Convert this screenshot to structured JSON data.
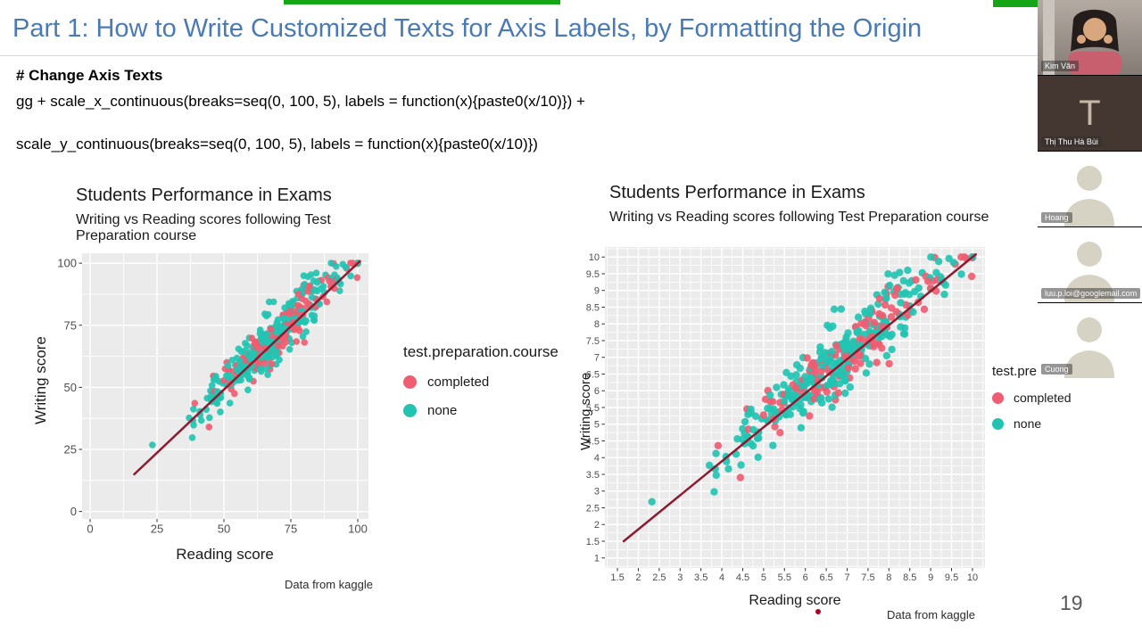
{
  "slide": {
    "title": "Part 1: How to Write Customized Texts for Axis Labels, by Formatting the Origin",
    "code_heading": "# Change Axis Texts",
    "code_line1": "gg + scale_x_continuous(breaks=seq(0, 100, 5), labels = function(x){paste0(x/10)}) +",
    "code_line2": "scale_y_continuous(breaks=seq(0, 100, 5), labels = function(x){paste0(x/10)})",
    "page_number": "19",
    "accent_color": "#16a516",
    "title_color": "#4a7ab2"
  },
  "chart_data": {
    "type": "scatter",
    "legend_title": "test.preparation.course",
    "series": [
      {
        "name": "completed",
        "color": "#ee5d71"
      },
      {
        "name": "none",
        "color": "#23c3b2"
      }
    ],
    "trend": {
      "x1": 16.5,
      "y1": 15.0,
      "x2": 100.8,
      "y2": 100.8,
      "color": "#8e1a2f"
    },
    "panel_color": "#ebebeb",
    "generator": {
      "note": "approximation of ~1000 overplotted exam-score points, writing ≈ reading + noise",
      "seed": 7,
      "n": 420,
      "x_mean": 69,
      "x_sd": 13.5,
      "completed_share": 0.36,
      "completed_shift": 4,
      "none_shift": -2,
      "noise_mean": 1.5,
      "noise_sd": 5,
      "x_clamp": [
        16,
        100
      ],
      "y_clamp": [
        10,
        100
      ]
    },
    "charts": [
      {
        "id": "left",
        "title": "Students Performance in Exams",
        "subtitle": "Writing vs Reading scores following Test Preparation course",
        "xlabel": "Reading score",
        "ylabel": "Writing score",
        "caption": "Data from kaggle",
        "xlim": [
          -3,
          104
        ],
        "ylim": [
          -3,
          104
        ],
        "x_ticks": {
          "values": [
            0,
            25,
            50,
            75,
            100
          ],
          "labels": [
            "0",
            "25",
            "50",
            "75",
            "100"
          ]
        },
        "y_ticks": {
          "values": [
            0,
            25,
            50,
            75,
            100
          ],
          "labels": [
            "0",
            "25",
            "50",
            "75",
            "100"
          ]
        }
      },
      {
        "id": "right",
        "title": "Students Performance in Exams",
        "subtitle": "Writing vs Reading scores following Test Preparation course",
        "xlabel": "Reading score",
        "ylabel": "Writing score",
        "caption": "Data from kaggle",
        "xlim": [
          12,
          103
        ],
        "ylim": [
          7,
          103
        ],
        "x_ticks": {
          "values": [
            15,
            20,
            25,
            30,
            35,
            40,
            45,
            50,
            55,
            60,
            65,
            70,
            75,
            80,
            85,
            90,
            95,
            100
          ],
          "labels": [
            "1.5",
            "2",
            "2.5",
            "3",
            "3.5",
            "4",
            "4.5",
            "5",
            "5.5",
            "6",
            "6.5",
            "7",
            "7.5",
            "8",
            "8.5",
            "9",
            "9.5",
            "10"
          ]
        },
        "y_ticks": {
          "values": [
            10,
            15,
            20,
            25,
            30,
            35,
            40,
            45,
            50,
            55,
            60,
            65,
            70,
            75,
            80,
            85,
            90,
            95,
            100
          ],
          "labels": [
            "1",
            "1.5",
            "2",
            "2.5",
            "3",
            "3.5",
            "4",
            "4.5",
            "5",
            "5.5",
            "6",
            "6.5",
            "7",
            "7.5",
            "8",
            "8.5",
            "9",
            "9.5",
            "10"
          ]
        }
      }
    ]
  },
  "sidebar": {
    "participants": [
      {
        "name": "Kim Vân",
        "type": "video"
      },
      {
        "name": "Thị Thu Hà Bùi",
        "type": "initial",
        "initial": "T"
      },
      {
        "name": "Hoang",
        "type": "silhouette"
      },
      {
        "name": "luu.p.loi@googlemail.com",
        "type": "silhouette"
      },
      {
        "name": "Cuong",
        "type": "silhouette"
      }
    ]
  }
}
